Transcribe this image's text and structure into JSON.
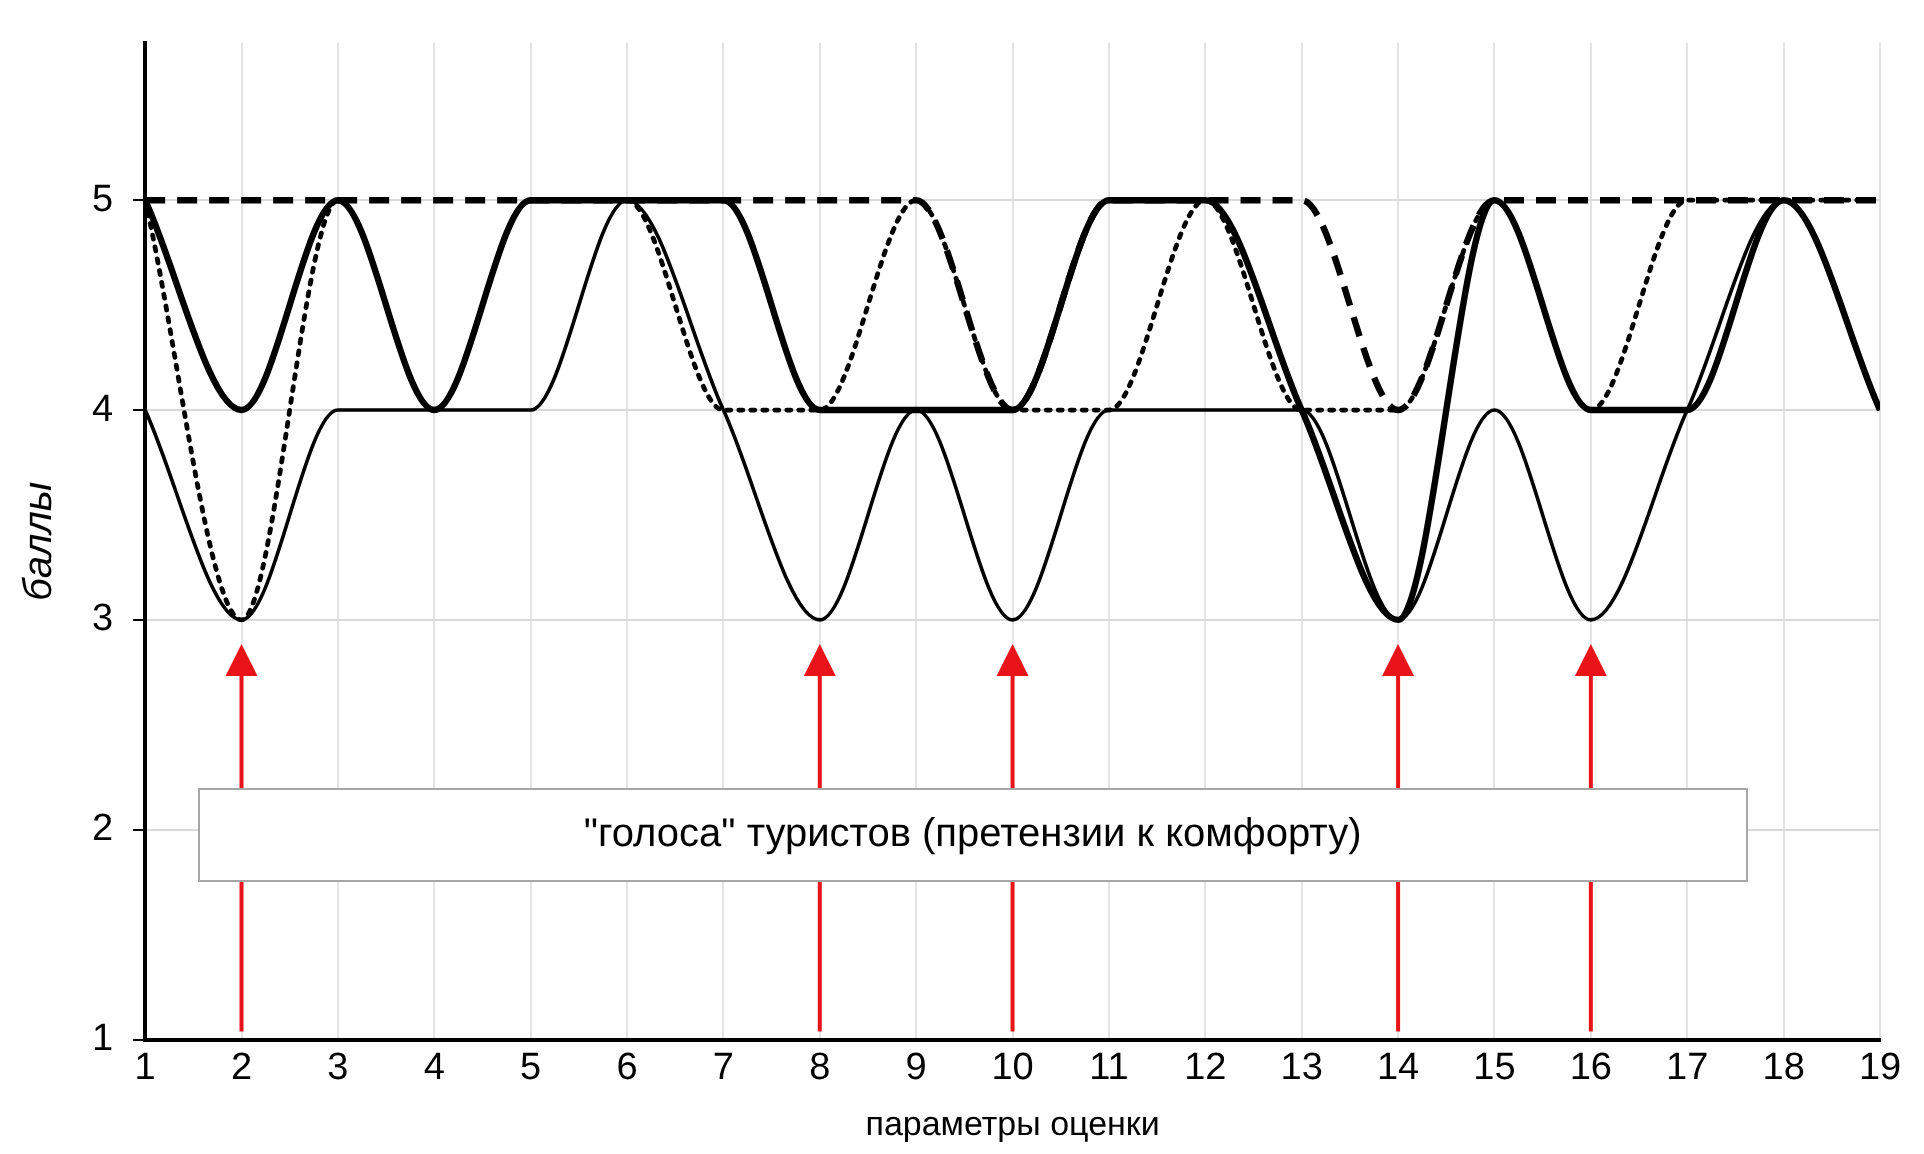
{
  "chart_data": {
    "type": "line",
    "xlabel": "параметры оценки",
    "ylabel": "баллы",
    "x": [
      1,
      2,
      3,
      4,
      5,
      6,
      7,
      8,
      9,
      10,
      11,
      12,
      13,
      14,
      15,
      16,
      17,
      18,
      19
    ],
    "xlim": [
      1,
      19
    ],
    "xticks": [
      1,
      2,
      3,
      4,
      5,
      6,
      7,
      8,
      9,
      10,
      11,
      12,
      13,
      14,
      15,
      16,
      17,
      18,
      19
    ],
    "ylim": [
      1,
      5.75
    ],
    "yticks": [
      1,
      2,
      3,
      4,
      5
    ],
    "grid": true,
    "legend": false,
    "marker": "none",
    "annotations": [
      "\"голоса\" туристов (претензии к комфорту)"
    ],
    "series": [
      {
        "color": "#000000",
        "line_style": "solid",
        "values": [
          4,
          3,
          4,
          4,
          4,
          5,
          4,
          3,
          4,
          3,
          4,
          4,
          4,
          3,
          4,
          3,
          4,
          5,
          4
        ]
      },
      {
        "color": "#000000",
        "line_style": "solid",
        "values": [
          5,
          4,
          5,
          4,
          5,
          5,
          5,
          4,
          4,
          4,
          5,
          5,
          4,
          3,
          5,
          4,
          4,
          5,
          4
        ]
      },
      {
        "color": "#000000",
        "line_style": "dotted",
        "values": [
          5,
          3,
          5,
          4,
          5,
          5,
          4,
          4,
          5,
          4,
          4,
          5,
          4,
          4,
          5,
          4,
          5,
          5,
          5
        ]
      },
      {
        "color": "#000000",
        "line_style": "dashed",
        "values": [
          5,
          5,
          5,
          5,
          5,
          5,
          5,
          5,
          5,
          4,
          5,
          5,
          5,
          4,
          5,
          5,
          5,
          5,
          5
        ]
      }
    ]
  }
}
